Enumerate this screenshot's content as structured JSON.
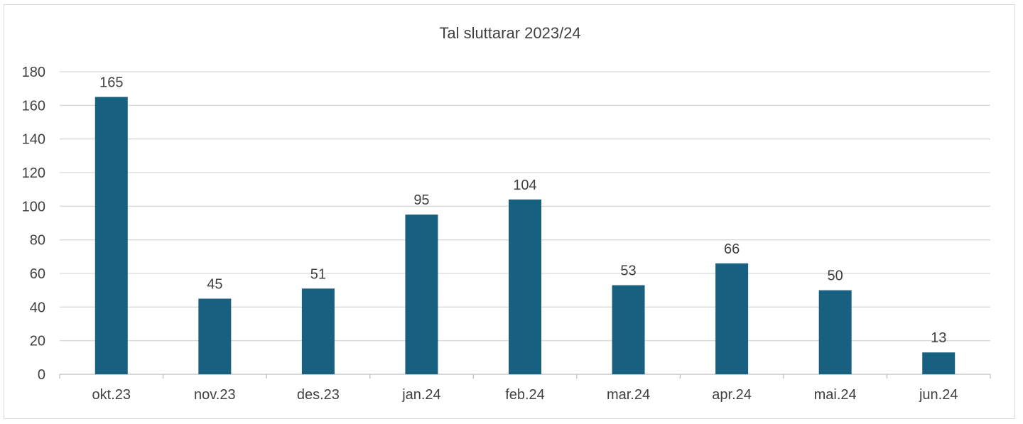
{
  "chart_data": {
    "type": "bar",
    "title": "Tal sluttarar 2023/24",
    "categories": [
      "okt.23",
      "nov.23",
      "des.23",
      "jan.24",
      "feb.24",
      "mar.24",
      "apr.24",
      "mai.24",
      "jun.24"
    ],
    "values": [
      165,
      45,
      51,
      95,
      104,
      53,
      66,
      50,
      13
    ],
    "xlabel": "",
    "ylabel": "",
    "ylim": [
      0,
      180
    ],
    "yticks": [
      0,
      20,
      40,
      60,
      80,
      100,
      120,
      140,
      160,
      180
    ],
    "grid": true,
    "legend": "none",
    "bar_color": "#17607f",
    "data_labels": true
  }
}
